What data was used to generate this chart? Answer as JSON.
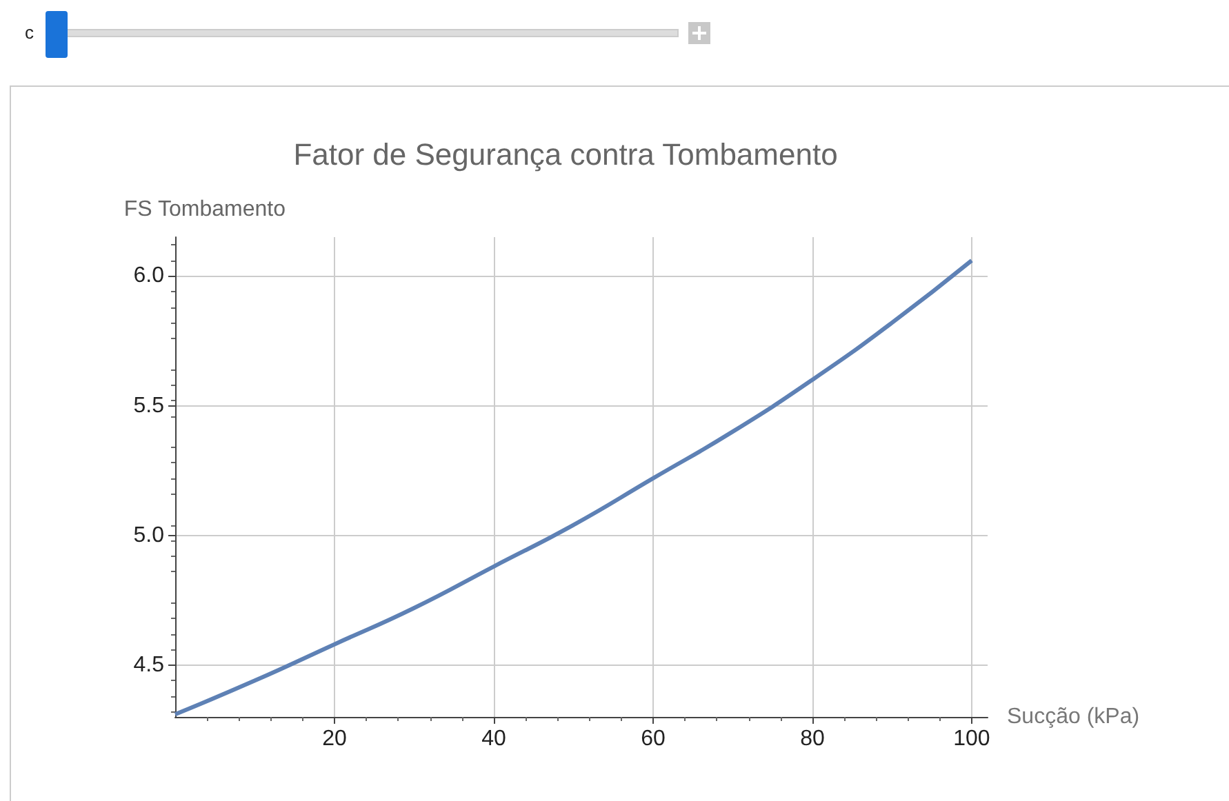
{
  "chart_data": {
    "type": "line",
    "title": "Fator de Segurança contra Tombamento",
    "xlabel": "Sucção (kPa)",
    "ylabel": "FS Tombamento",
    "x": [
      0,
      10,
      20,
      30,
      40,
      50,
      60,
      70,
      80,
      90,
      100
    ],
    "series": [
      {
        "color": "#5e81b5",
        "values": [
          4.31,
          4.44,
          4.58,
          4.72,
          4.88,
          5.04,
          5.22,
          5.4,
          5.6,
          5.82,
          6.06
        ]
      }
    ],
    "xlim": [
      0,
      102
    ],
    "ylim": [
      4.3,
      6.15
    ],
    "xticks": [
      20,
      40,
      60,
      80,
      100
    ],
    "yticks": [
      {
        "value": 4.5,
        "label": "4.5"
      },
      {
        "value": 5,
        "label": "5.0"
      },
      {
        "value": 5.5,
        "label": "5.5"
      },
      {
        "value": 6,
        "label": "6.0"
      }
    ],
    "grid": true,
    "annotations": [
      "c"
    ]
  }
}
